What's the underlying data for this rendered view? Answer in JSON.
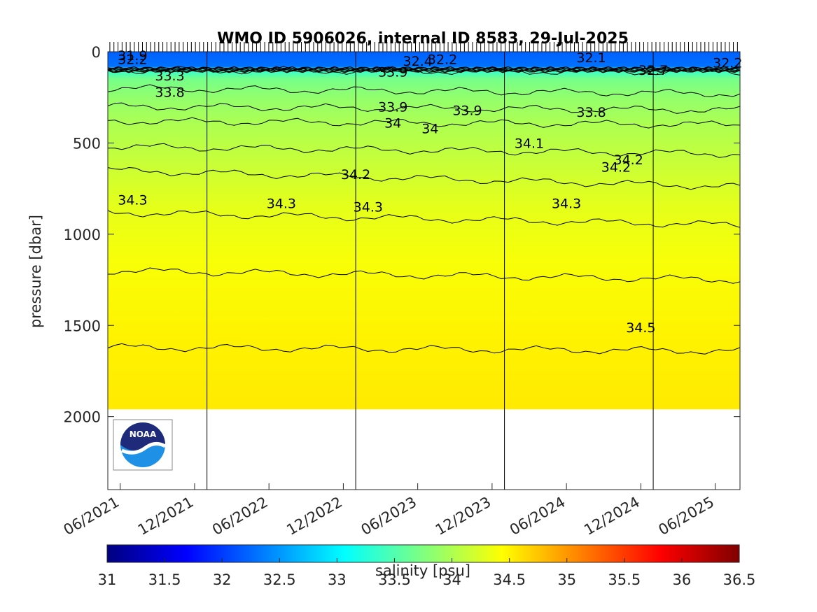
{
  "chart_data": {
    "type": "heatmap",
    "title": "WMO ID 5906026, internal ID 8583, 29-Jul-2025",
    "ylabel": "pressure [dbar]",
    "xlabel": "",
    "ylim": [
      0,
      2400
    ],
    "y_reversed": true,
    "y_ticks": [
      0,
      500,
      1000,
      1500,
      2000
    ],
    "x_range": [
      "2021-05",
      "2025-08"
    ],
    "x_ticks": [
      "06/2021",
      "12/2021",
      "06/2022",
      "12/2022",
      "06/2023",
      "12/2023",
      "06/2024",
      "12/2024",
      "06/2025"
    ],
    "colorbar": {
      "label": "salinity [psu]",
      "clim": [
        31,
        36.5
      ],
      "ticks": [
        "31",
        "31.5",
        "32",
        "32.5",
        "33",
        "33.5",
        "34",
        "34.5",
        "35",
        "35.5",
        "36",
        "36.5"
      ],
      "colormap": "jet"
    },
    "profile_max_pressure_dbar": 1960,
    "vertical_lines": [
      "2022-01",
      "2023-01",
      "2024-01",
      "2025-01"
    ],
    "salinity_profile": [
      {
        "pressure": 0,
        "salinity": 32.2
      },
      {
        "pressure": 80,
        "salinity": 32.3
      },
      {
        "pressure": 100,
        "salinity": 33.3
      },
      {
        "pressure": 150,
        "salinity": 33.7
      },
      {
        "pressure": 250,
        "salinity": 33.85
      },
      {
        "pressure": 400,
        "salinity": 34.0
      },
      {
        "pressure": 550,
        "salinity": 34.1
      },
      {
        "pressure": 700,
        "salinity": 34.2
      },
      {
        "pressure": 850,
        "salinity": 34.3
      },
      {
        "pressure": 1150,
        "salinity": 34.4
      },
      {
        "pressure": 1550,
        "salinity": 34.5
      },
      {
        "pressure": 2000,
        "salinity": 34.55
      }
    ],
    "contours": [
      {
        "level": "33.3",
        "pressure_start": 100,
        "pressure_end": 110
      },
      {
        "level": "33.8",
        "pressure_start": 200,
        "pressure_end": 230
      },
      {
        "level": "33.9",
        "pressure_start": 300,
        "pressure_end": 320
      },
      {
        "level": "34",
        "pressure_start": 380,
        "pressure_end": 400
      },
      {
        "level": "34.1",
        "pressure_start": 520,
        "pressure_end": 560
      },
      {
        "level": "34.2",
        "pressure_start": 650,
        "pressure_end": 740
      },
      {
        "level": "34.3",
        "pressure_start": 880,
        "pressure_end": 950
      },
      {
        "level": "34.4",
        "pressure_start": 1200,
        "pressure_end": 1250
      },
      {
        "level": "34.5",
        "pressure_start": 1620,
        "pressure_end": 1640
      }
    ],
    "contour_labels": [
      {
        "text": "31.9",
        "date": "2021-07",
        "pressure": 20
      },
      {
        "text": "32.2",
        "date": "2021-07",
        "pressure": 40
      },
      {
        "text": "33.3",
        "date": "2021-10",
        "pressure": 130
      },
      {
        "text": "33.8",
        "date": "2021-10",
        "pressure": 220
      },
      {
        "text": "32.4",
        "date": "2023-06",
        "pressure": 50
      },
      {
        "text": "32.2",
        "date": "2023-08",
        "pressure": 40
      },
      {
        "text": "33.9",
        "date": "2023-04",
        "pressure": 110
      },
      {
        "text": "33.9",
        "date": "2023-04",
        "pressure": 300
      },
      {
        "text": "34",
        "date": "2023-04",
        "pressure": 390
      },
      {
        "text": "34",
        "date": "2023-07",
        "pressure": 420
      },
      {
        "text": "33.9",
        "date": "2023-10",
        "pressure": 320
      },
      {
        "text": "34.2",
        "date": "2023-01",
        "pressure": 670
      },
      {
        "text": "34.3",
        "date": "2021-07",
        "pressure": 810
      },
      {
        "text": "34.3",
        "date": "2022-07",
        "pressure": 830
      },
      {
        "text": "34.3",
        "date": "2023-02",
        "pressure": 850
      },
      {
        "text": "32.1",
        "date": "2024-08",
        "pressure": 30
      },
      {
        "text": "34.1",
        "date": "2024-03",
        "pressure": 500
      },
      {
        "text": "33.8",
        "date": "2024-08",
        "pressure": 330
      },
      {
        "text": "34.2",
        "date": "2024-10",
        "pressure": 630
      },
      {
        "text": "34.2",
        "date": "2024-11",
        "pressure": 590
      },
      {
        "text": "34.3",
        "date": "2024-06",
        "pressure": 830
      },
      {
        "text": "34.5",
        "date": "2024-12",
        "pressure": 1510
      },
      {
        "text": "32.7",
        "date": "2025-01",
        "pressure": 100
      },
      {
        "text": "32.2",
        "date": "2025-07",
        "pressure": 60
      }
    ]
  },
  "logo": {
    "text": "NOAA",
    "navy": "#1f2a7a",
    "light_blue": "#1e90e6"
  }
}
